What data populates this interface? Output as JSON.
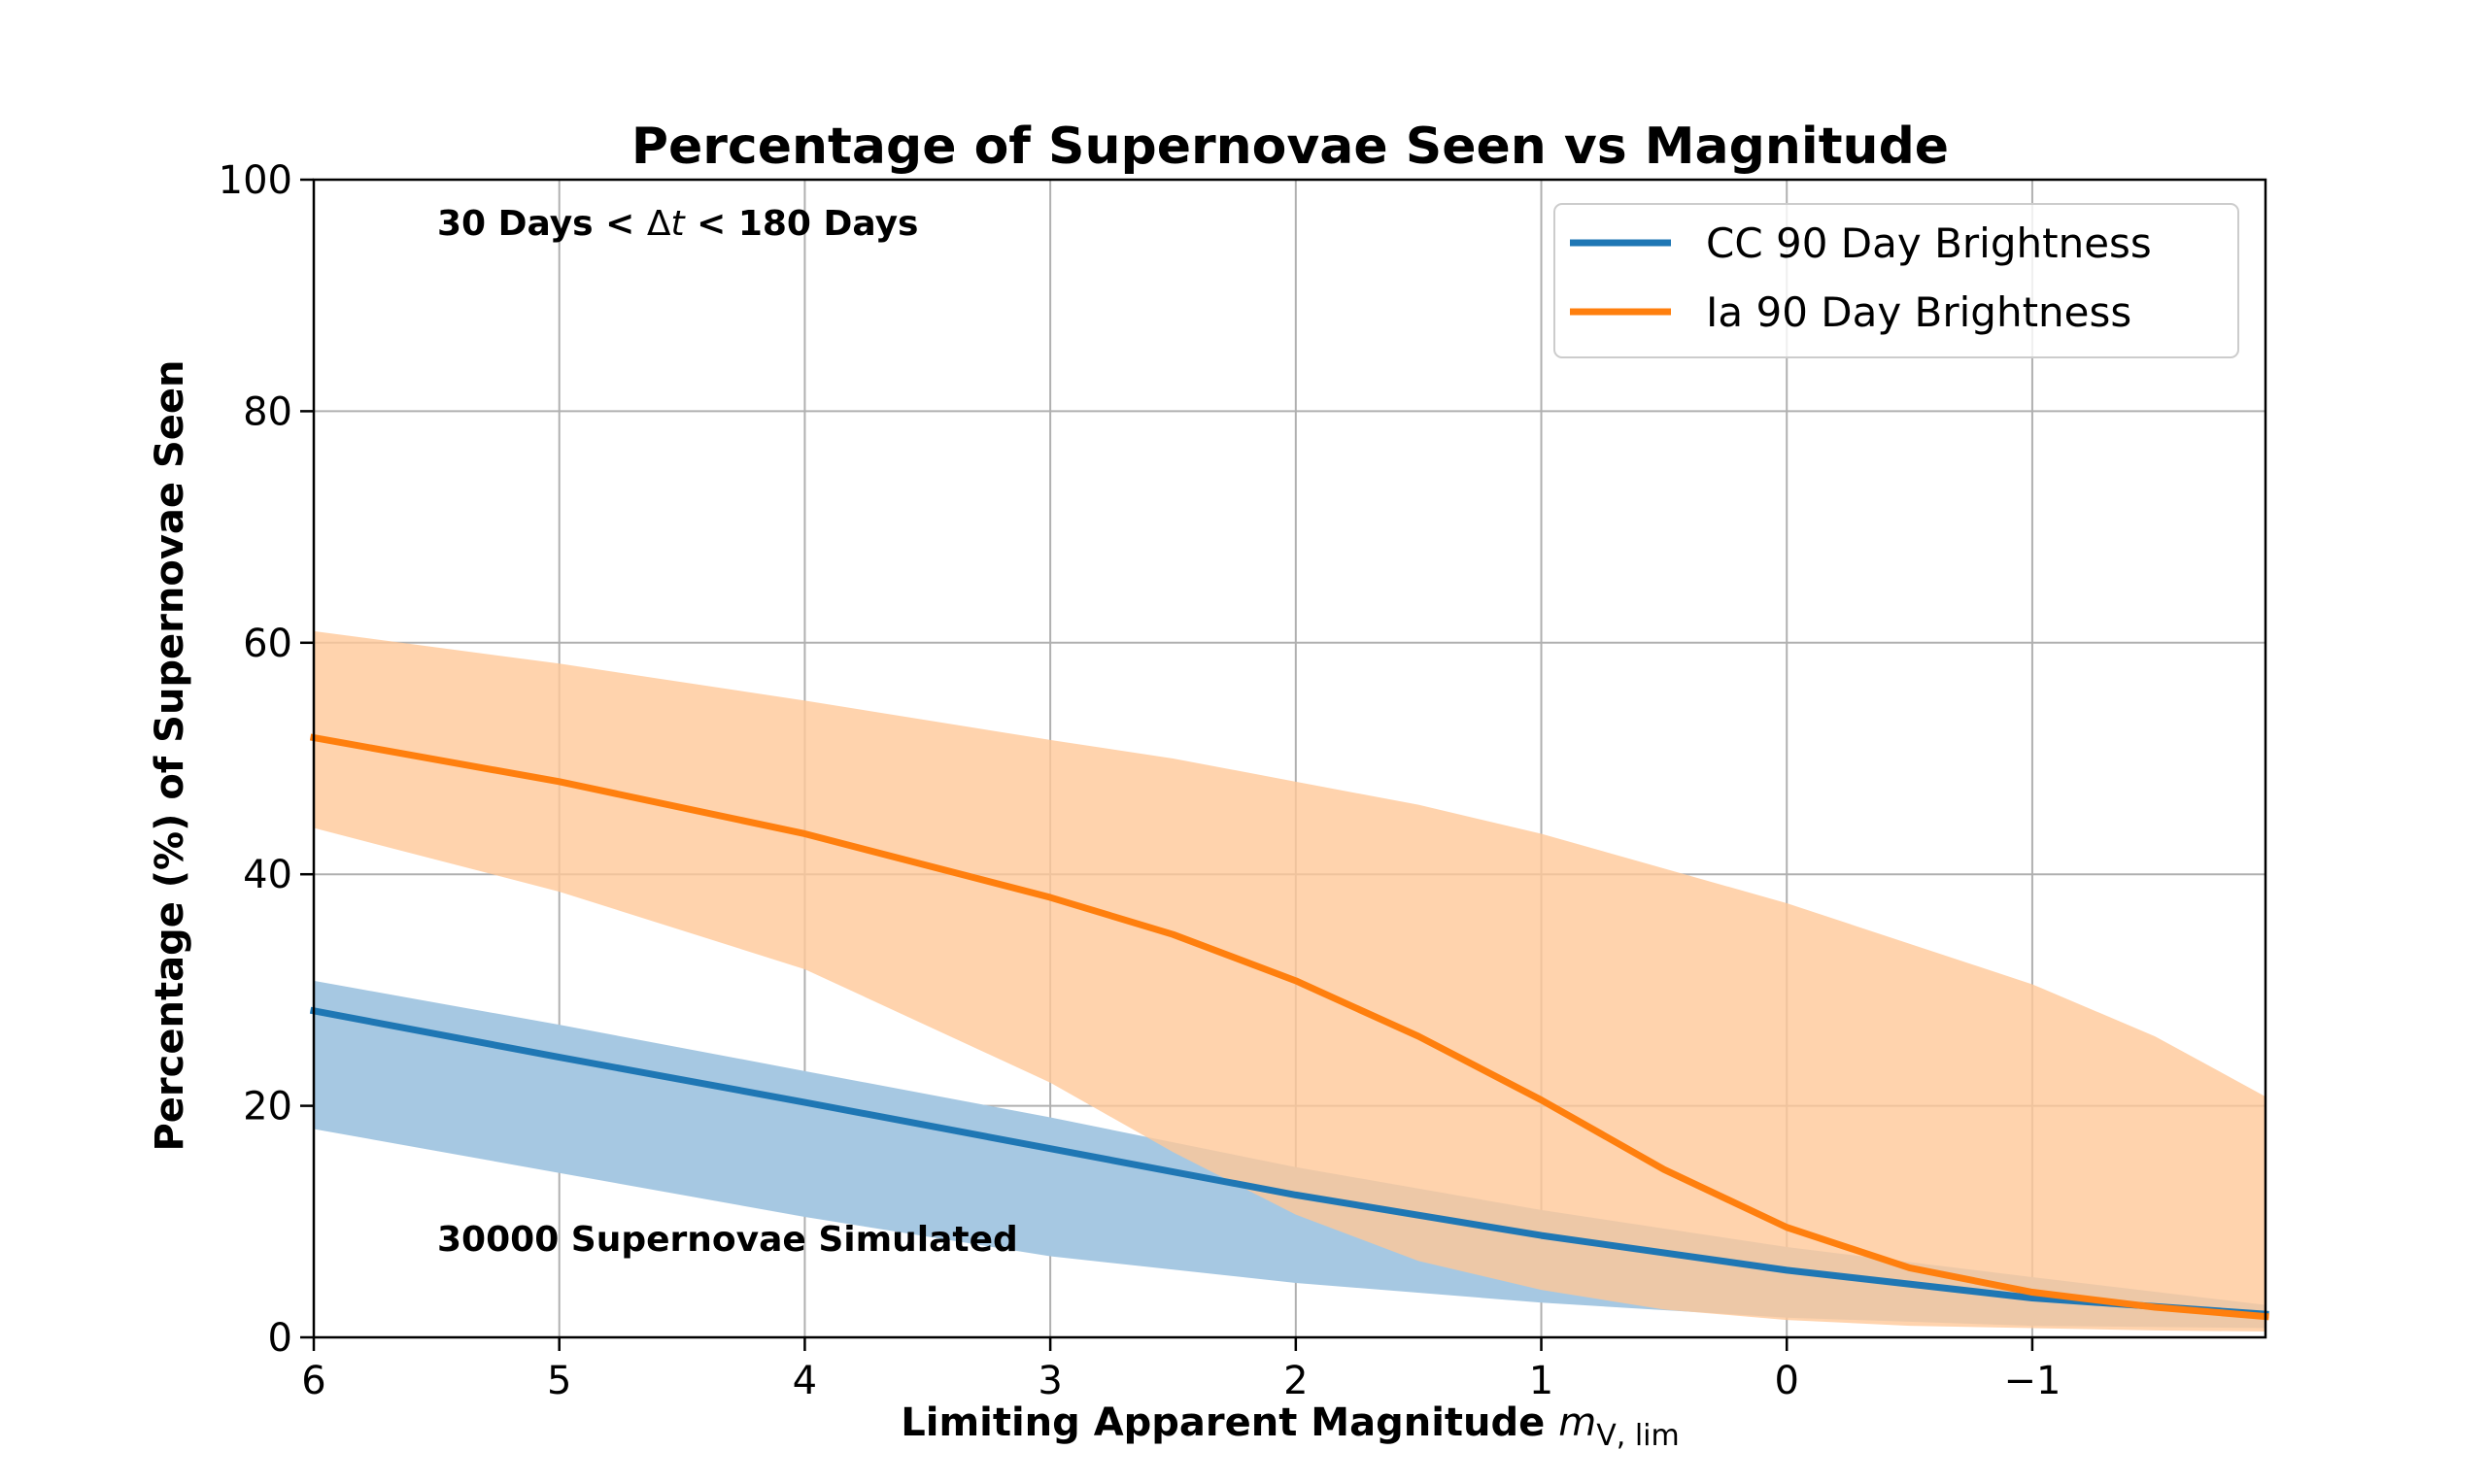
{
  "chart_data": {
    "type": "line",
    "title": "Percentage of Supernovae Seen vs Magnitude",
    "xlabel": "Limiting Apparent Magnitude",
    "xlabel_math": "m",
    "xlabel_sub": "V, lim",
    "ylabel": "Percentage (%) of Supernovae Seen",
    "xlim": [
      6,
      -1.95
    ],
    "ylim": [
      0,
      100
    ],
    "x_ticks": [
      6,
      5,
      4,
      3,
      2,
      1,
      0,
      -1
    ],
    "x_tick_labels": [
      "6",
      "5",
      "4",
      "3",
      "2",
      "1",
      "0",
      "−1"
    ],
    "y_ticks": [
      0,
      20,
      40,
      60,
      80,
      100
    ],
    "y_tick_labels": [
      "0",
      "20",
      "40",
      "60",
      "80",
      "100"
    ],
    "grid": true,
    "legend_position": "top-right",
    "annotations": {
      "top_left_prefix": "30 Days < ",
      "top_left_delta": "Δ",
      "top_left_var": "t",
      "top_left_suffix": " < 180 Days",
      "bottom_left": "30000 Supernovae Simulated"
    },
    "series": [
      {
        "name": "CC 90 Day Brightness",
        "color": "#1f77b4",
        "band_color": "#a6c8e2",
        "x": [
          6,
          5,
          4,
          3,
          2,
          1,
          0,
          -1,
          -1.95
        ],
        "values": [
          28.2,
          24.2,
          20.3,
          16.3,
          12.3,
          8.8,
          5.8,
          3.4,
          2.0
        ],
        "lower": [
          18.0,
          14.2,
          10.4,
          7.0,
          4.7,
          3.0,
          1.7,
          1.0,
          0.8
        ],
        "upper": [
          30.8,
          27.0,
          23.0,
          19.0,
          14.7,
          11.0,
          7.8,
          5.2,
          2.8
        ]
      },
      {
        "name": "Ia 90 Day Brightness",
        "color": "#ff7f0e",
        "band_color": "#ffc899",
        "x": [
          6,
          5,
          4,
          3,
          2.5,
          2,
          1.5,
          1,
          0.5,
          0,
          -0.5,
          -1,
          -1.5,
          -1.95
        ],
        "values": [
          51.8,
          48.0,
          43.5,
          38.0,
          34.8,
          30.8,
          26.0,
          20.5,
          14.5,
          9.5,
          6.0,
          3.9,
          2.6,
          1.8
        ],
        "lower": [
          44.0,
          38.5,
          31.8,
          22.0,
          16.0,
          10.6,
          6.6,
          4.1,
          2.4,
          1.5,
          1.0,
          0.8,
          0.6,
          0.5
        ],
        "upper": [
          61.0,
          58.2,
          55.0,
          51.6,
          50.0,
          48.0,
          46.0,
          43.5,
          40.5,
          37.5,
          34.0,
          30.5,
          26.0,
          20.8
        ]
      }
    ]
  }
}
